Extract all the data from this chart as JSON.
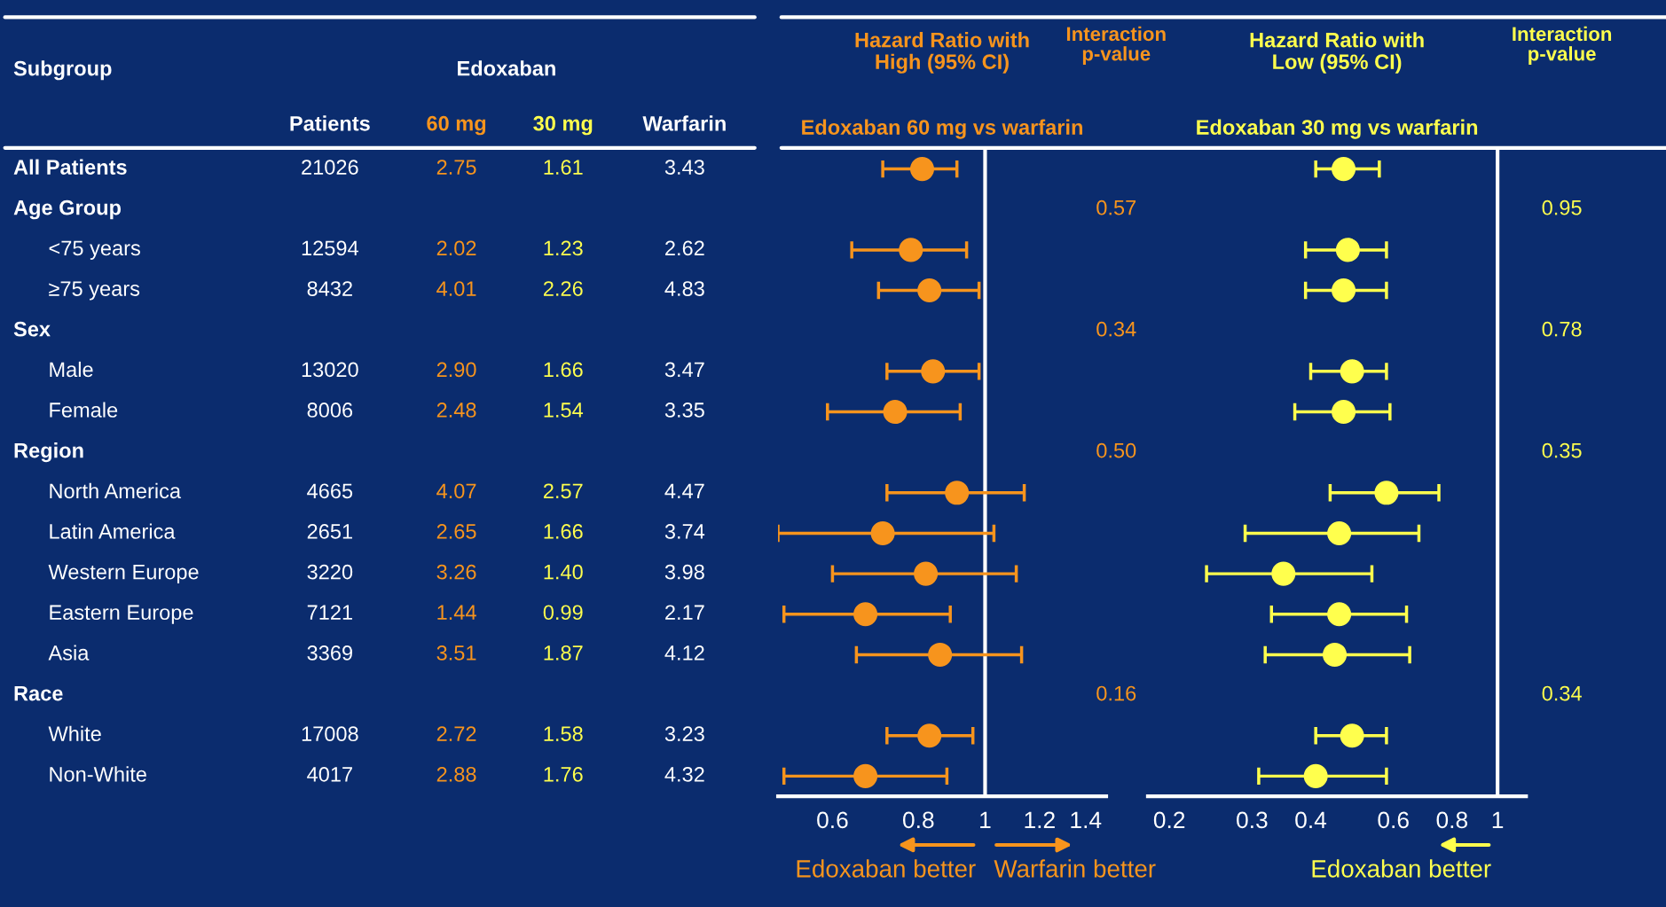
{
  "chart_data": [
    {
      "type": "other",
      "title": "Edoxaban",
      "ylabel": "Subgroup",
      "categories": [
        "Patients",
        "60 mg",
        "30 mg",
        "Warfarin",
        "Interaction p-value",
        "Interaction p-value"
      ],
      "colors": [
        "#ffffff",
        "#f7941d",
        "#ffff4d",
        "#ffffff",
        "#f7941d",
        "#ffff4d"
      ],
      "y_categories": [
        "All Patients",
        "Age Group",
        "<75 years",
        "≥75 years",
        "Sex",
        "Male",
        "Female",
        "Region",
        "North America",
        "Latin America",
        "Western Europe",
        "Eastern Europe",
        "Asia",
        "Race",
        "White",
        "Non-White"
      ],
      "cell_labels": [
        [
          "21026",
          "2.75",
          "1.61",
          "3.43",
          null,
          null
        ],
        [
          null,
          null,
          null,
          null,
          "0.57",
          "0.95"
        ],
        [
          "12594",
          "2.02",
          "1.23",
          "2.62",
          null,
          null
        ],
        [
          "8432",
          "4.01",
          "2.26",
          "4.83",
          null,
          null
        ],
        [
          null,
          null,
          null,
          null,
          "0.34",
          "0.78"
        ],
        [
          "13020",
          "2.90",
          "1.66",
          "3.47",
          null,
          null
        ],
        [
          "8006",
          "2.48",
          "1.54",
          "3.35",
          null,
          null
        ],
        [
          null,
          null,
          null,
          null,
          "0.50",
          "0.35"
        ],
        [
          "4665",
          "4.07",
          "2.57",
          "4.47",
          null,
          null
        ],
        [
          "2651",
          "2.65",
          "1.66",
          "3.74",
          null,
          null
        ],
        [
          "3220",
          "3.26",
          "1.40",
          "3.98",
          null,
          null
        ],
        [
          "7121",
          "1.44",
          "0.99",
          "2.17",
          null,
          null
        ],
        [
          "3369",
          "3.51",
          "1.87",
          "4.12",
          null,
          null
        ],
        [
          null,
          null,
          null,
          null,
          "0.16",
          "0.34"
        ],
        [
          "17008",
          "2.72",
          "1.58",
          "3.23",
          null,
          null
        ],
        [
          "4017",
          "2.88",
          "1.76",
          "4.32",
          null,
          null
        ]
      ]
    },
    {
      "type": "scatter",
      "orientation": "horizontal",
      "title": "Hazard Ratio with\nHigh (95% CI)",
      "subtitle": "Edoxaban 60 mg vs warfarin",
      "categories": [
        null,
        null,
        null,
        null,
        null,
        null,
        null,
        null,
        null,
        null,
        null,
        null,
        null,
        null,
        null,
        null
      ],
      "tick_labels": "x",
      "log": "x",
      "xlim": [
        0.5,
        1.5
      ],
      "xticks": [
        0.6,
        0.8,
        1,
        1.2,
        1.4
      ],
      "marker": "circle",
      "grid": false,
      "ref_lines": [
        {
          "axis": "x",
          "value": 1,
          "color": "#ffffff"
        }
      ],
      "annotations": [
        "Edoxaban better",
        "Warfarin better"
      ],
      "series": [
        {
          "color": "#f7941d",
          "values": [
            0.81,
            null,
            0.78,
            0.83,
            null,
            0.84,
            0.74,
            null,
            0.91,
            0.71,
            0.82,
            0.67,
            0.86,
            null,
            0.83,
            0.67
          ],
          "errors": [
            [
              0.71,
              0.91
            ],
            null,
            [
              0.64,
              0.94
            ],
            [
              0.7,
              0.98
            ],
            null,
            [
              0.72,
              0.98
            ],
            [
              0.59,
              0.92
            ],
            null,
            [
              0.72,
              1.14
            ],
            [
              0.5,
              1.03
            ],
            [
              0.6,
              1.11
            ],
            [
              0.51,
              0.89
            ],
            [
              0.65,
              1.13
            ],
            null,
            [
              0.72,
              0.96
            ],
            [
              0.51,
              0.88
            ]
          ]
        }
      ]
    },
    {
      "type": "scatter",
      "orientation": "horizontal",
      "title": "Hazard Ratio with\nLow (95% CI)",
      "subtitle": "Edoxaban 30 mg vs warfarin",
      "categories": [
        null,
        null,
        null,
        null,
        null,
        null,
        null,
        null,
        null,
        null,
        null,
        null,
        null,
        null,
        null,
        null
      ],
      "tick_labels": "x",
      "log": "x",
      "xlim": [
        0.18,
        1.15
      ],
      "xticks": [
        0.2,
        0.3,
        0.4,
        0.6,
        0.8,
        1
      ],
      "marker": "circle",
      "grid": false,
      "ref_lines": [
        {
          "axis": "x",
          "value": 1,
          "color": "#ffffff"
        }
      ],
      "annotations": [
        "Edoxaban better"
      ],
      "series": [
        {
          "color": "#ffff4d",
          "values": [
            0.47,
            null,
            0.48,
            0.47,
            null,
            0.49,
            0.47,
            null,
            0.58,
            0.46,
            0.35,
            0.46,
            0.45,
            null,
            0.49,
            0.41
          ],
          "errors": [
            [
              0.41,
              0.56
            ],
            null,
            [
              0.39,
              0.58
            ],
            [
              0.39,
              0.58
            ],
            null,
            [
              0.4,
              0.58
            ],
            [
              0.37,
              0.59
            ],
            null,
            [
              0.44,
              0.75
            ],
            [
              0.29,
              0.68
            ],
            [
              0.24,
              0.54
            ],
            [
              0.33,
              0.64
            ],
            [
              0.32,
              0.65
            ],
            null,
            [
              0.41,
              0.58
            ],
            [
              0.31,
              0.58
            ]
          ]
        }
      ]
    }
  ]
}
